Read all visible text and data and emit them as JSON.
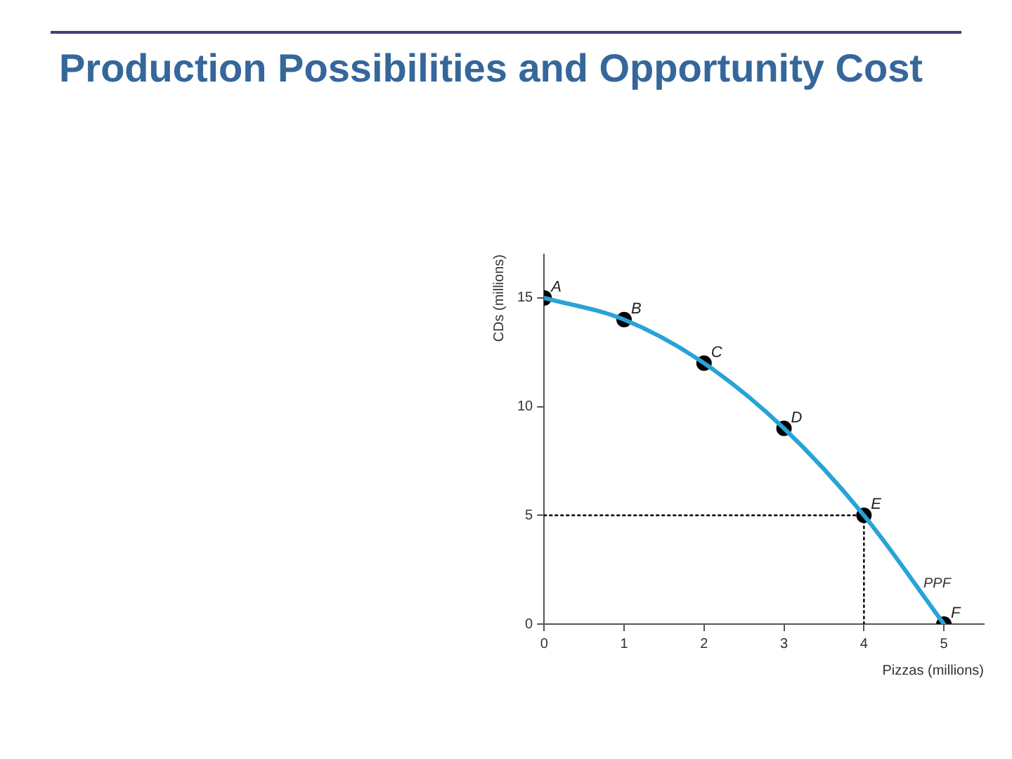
{
  "chart_data": {
    "type": "line",
    "title": "Production Possibilities and Opportunity Cost",
    "xlabel": "Pizzas (millions)",
    "ylabel": "CDs (millions)",
    "xlim": [
      0,
      5.5
    ],
    "xticks": [
      0,
      1,
      2,
      3,
      4,
      5
    ],
    "ylim": [
      0,
      17
    ],
    "yticks": [
      0,
      5,
      10,
      15
    ],
    "grid": false,
    "legend": false,
    "series": [
      {
        "type": "line",
        "color": "#29a3d6",
        "x": [
          0,
          1,
          2,
          3,
          4,
          5
        ],
        "values": [
          15,
          14,
          12,
          9,
          5,
          0
        ],
        "marker": "none",
        "line_style": "solid"
      },
      {
        "type": "line",
        "color": "#000000",
        "x": [
          0,
          4
        ],
        "values": [
          5,
          5
        ],
        "marker": "none",
        "line_style": "dotted"
      },
      {
        "type": "line",
        "color": "#000000",
        "x": [
          4,
          4
        ],
        "values": [
          0,
          5
        ],
        "marker": "none",
        "line_style": "dotted"
      },
      {
        "type": "scatter",
        "color": "#000000",
        "x": [
          0,
          1,
          2,
          3,
          4,
          5
        ],
        "values": [
          15,
          14,
          12,
          9,
          5,
          0
        ],
        "marker": "circle"
      }
    ],
    "annotations": [
      {
        "text": "A",
        "x": 0,
        "y": 15
      },
      {
        "text": "B",
        "x": 1,
        "y": 14
      },
      {
        "text": "C",
        "x": 2,
        "y": 12
      },
      {
        "text": "D",
        "x": 3,
        "y": 9
      },
      {
        "text": "E",
        "x": 4,
        "y": 5
      },
      {
        "text": "F",
        "x": 5,
        "y": 0
      },
      "PPF"
    ]
  }
}
